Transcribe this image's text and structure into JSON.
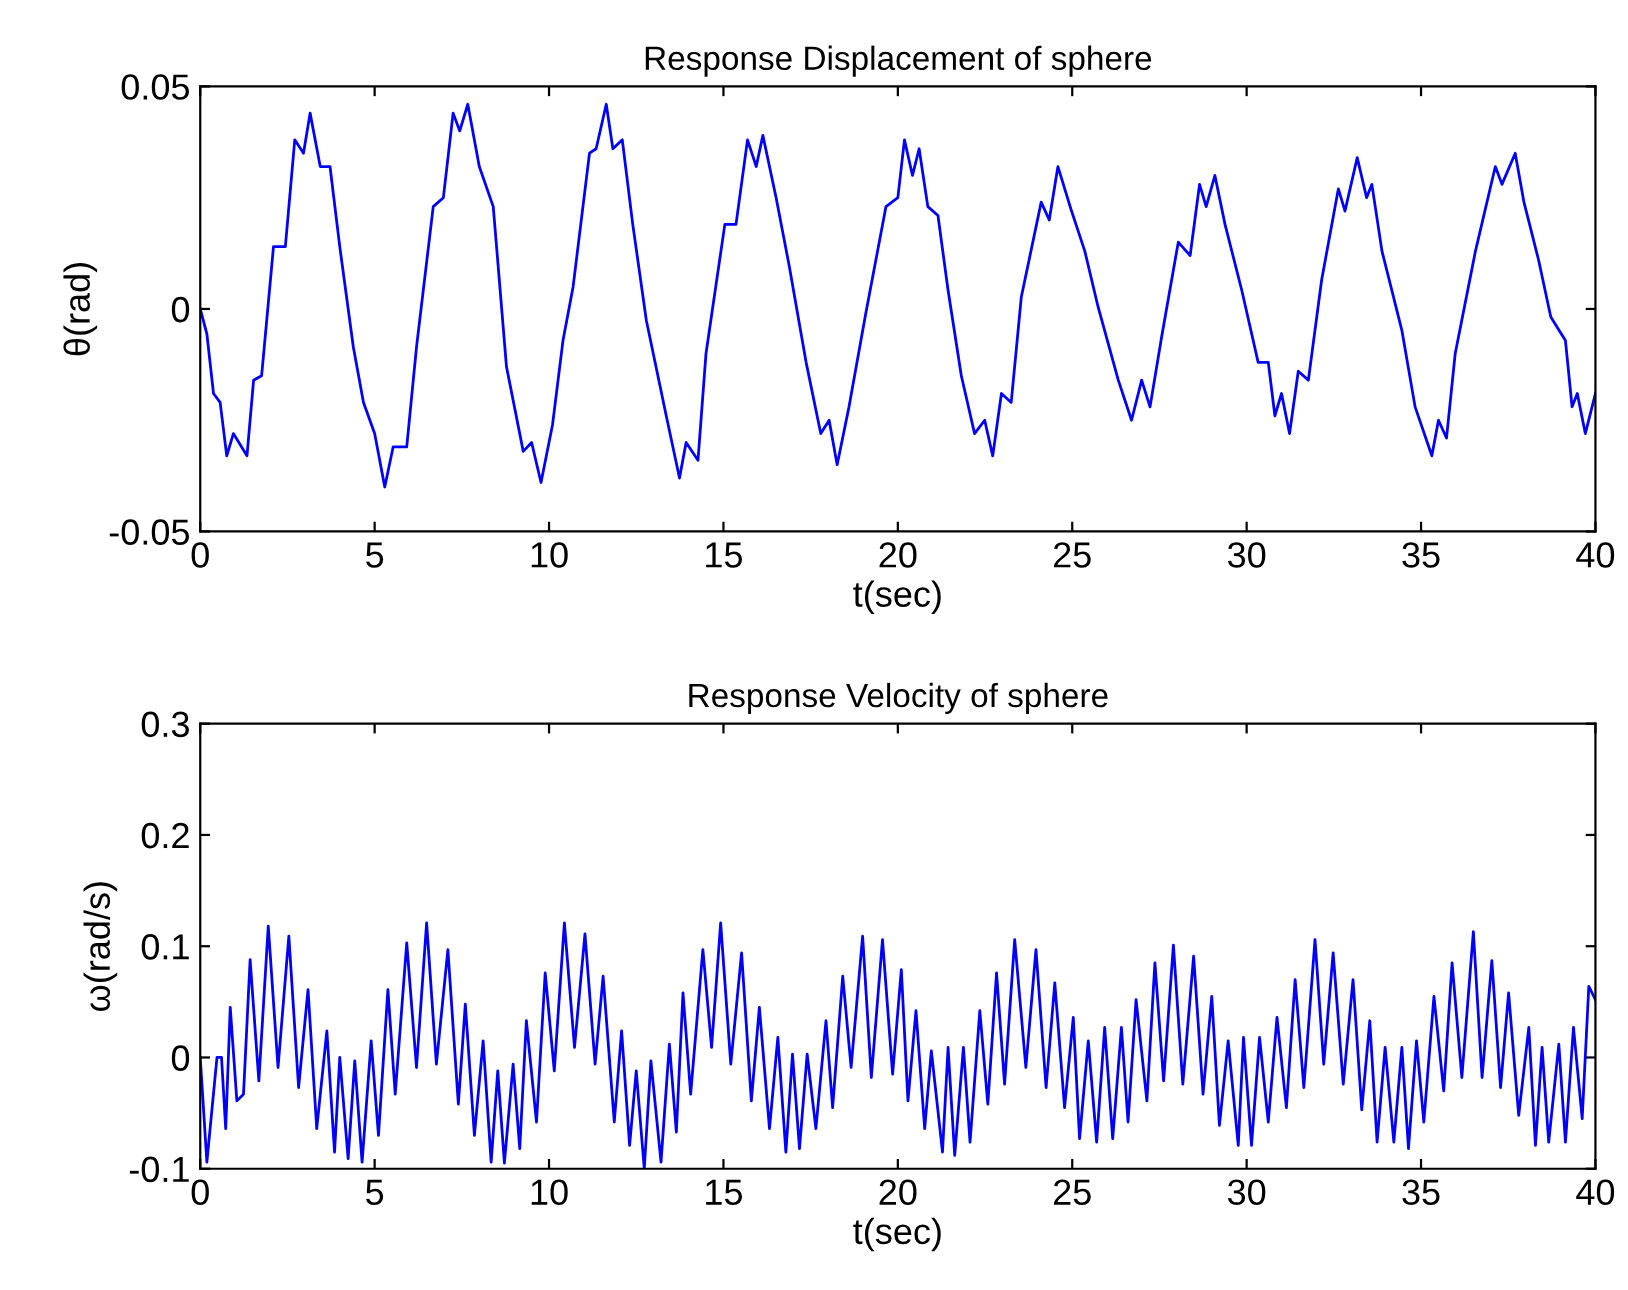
{
  "chart_data": [
    {
      "type": "line",
      "title": "Response Displacement of sphere",
      "xlabel": "t(sec)",
      "ylabel": "θ(rad)",
      "xlim": [
        0,
        40
      ],
      "xticks": [
        0,
        5,
        10,
        15,
        20,
        25,
        30,
        35,
        40
      ],
      "ylim": [
        -0.05,
        0.05
      ],
      "yticks": [
        -0.05,
        0,
        0.05
      ],
      "grid": false,
      "legend": false,
      "series": [
        {
          "color": "#0000ff",
          "x": [
            0,
            0.19,
            0.38,
            0.57,
            0.76,
            0.95,
            1.34,
            1.53,
            1.76,
            2.1,
            2.44,
            2.71,
            2.96,
            3.15,
            3.44,
            3.72,
            4.0,
            4.39,
            4.68,
            5.0,
            5.29,
            5.53,
            5.92,
            6.2,
            6.68,
            6.97,
            7.25,
            7.44,
            7.67,
            8.0,
            8.4,
            8.78,
            9.26,
            9.5,
            9.77,
            10.1,
            10.4,
            10.69,
            11.16,
            11.35,
            11.64,
            11.83,
            12.1,
            12.4,
            12.79,
            13.36,
            13.74,
            13.93,
            14.27,
            14.5,
            15.04,
            15.36,
            15.69,
            15.94,
            16.13,
            16.51,
            16.89,
            17.37,
            17.79,
            18.03,
            18.26,
            18.6,
            19.08,
            19.66,
            20.0,
            20.19,
            20.42,
            20.61,
            20.86,
            21.15,
            21.44,
            21.82,
            22.2,
            22.49,
            22.72,
            22.97,
            23.25,
            23.54,
            24.11,
            24.34,
            24.59,
            24.98,
            25.36,
            25.74,
            26.32,
            26.7,
            26.99,
            27.23,
            27.56,
            28.04,
            28.38,
            28.65,
            28.84,
            29.09,
            29.38,
            29.86,
            30.33,
            30.62,
            30.81,
            31.0,
            31.23,
            31.48,
            31.77,
            32.15,
            32.63,
            32.82,
            33.17,
            33.44,
            33.59,
            33.88,
            34.45,
            34.83,
            35.31,
            35.5,
            35.73,
            35.98,
            36.56,
            37.13,
            37.32,
            37.7,
            37.95,
            38.37,
            38.72,
            39.14,
            39.33,
            39.48,
            39.71,
            40.0
          ],
          "values": [
            0,
            -0.0056,
            -0.019,
            -0.021,
            -0.033,
            -0.028,
            -0.033,
            -0.016,
            -0.015,
            0.014,
            0.014,
            0.038,
            0.035,
            0.044,
            0.032,
            0.032,
            0.014,
            -0.0086,
            -0.021,
            -0.028,
            -0.04,
            -0.031,
            -0.031,
            -0.0086,
            0.023,
            0.025,
            0.044,
            0.04,
            0.046,
            0.032,
            0.023,
            -0.013,
            -0.032,
            -0.03,
            -0.039,
            -0.026,
            -0.0071,
            0.005,
            0.035,
            0.036,
            0.046,
            0.036,
            0.038,
            0.019,
            -0.0026,
            -0.024,
            -0.038,
            -0.03,
            -0.034,
            -0.01,
            0.019,
            0.019,
            0.038,
            0.032,
            0.039,
            0.025,
            0.0095,
            -0.012,
            -0.028,
            -0.025,
            -0.035,
            -0.022,
            -0.001,
            0.023,
            0.025,
            0.038,
            0.03,
            0.036,
            0.023,
            0.021,
            0.0042,
            -0.015,
            -0.028,
            -0.025,
            -0.033,
            -0.019,
            -0.021,
            0.0027,
            0.024,
            0.02,
            0.032,
            0.022,
            0.013,
            0.0005,
            -0.016,
            -0.025,
            -0.016,
            -0.022,
            -0.0064,
            0.015,
            0.012,
            0.028,
            0.023,
            0.03,
            0.019,
            0.0042,
            -0.012,
            -0.012,
            -0.024,
            -0.019,
            -0.028,
            -0.014,
            -0.016,
            0.0065,
            0.027,
            0.022,
            0.034,
            0.025,
            0.028,
            0.013,
            -0.0048,
            -0.022,
            -0.033,
            -0.025,
            -0.029,
            -0.01,
            0.013,
            0.032,
            0.028,
            0.035,
            0.024,
            0.011,
            -0.0018,
            -0.0071,
            -0.022,
            -0.019,
            -0.028,
            -0.019
          ]
        }
      ]
    },
    {
      "type": "line",
      "title": "Response Velocity of sphere",
      "xlabel": "t(sec)",
      "ylabel": "ω(rad/s)",
      "xlim": [
        0,
        40
      ],
      "xticks": [
        0,
        5,
        10,
        15,
        20,
        25,
        30,
        35,
        40
      ],
      "ylim": [
        -0.1,
        0.3
      ],
      "yticks": [
        -0.1,
        0,
        0.1,
        0.2,
        0.3
      ],
      "grid": false,
      "legend": false,
      "series": [
        {
          "color": "#0000ff",
          "x": [
            0,
            0.19,
            0.48,
            0.61,
            0.73,
            0.86,
            1.05,
            1.24,
            1.43,
            1.68,
            1.95,
            2.23,
            2.54,
            2.82,
            3.09,
            3.34,
            3.63,
            3.85,
            4.0,
            4.24,
            4.43,
            4.64,
            4.9,
            5.11,
            5.38,
            5.59,
            5.92,
            6.2,
            6.49,
            6.77,
            7.1,
            7.4,
            7.6,
            7.86,
            8.11,
            8.34,
            8.53,
            8.72,
            8.97,
            9.16,
            9.35,
            9.64,
            9.89,
            10.15,
            10.44,
            10.73,
            11.03,
            11.32,
            11.55,
            11.87,
            12.08,
            12.31,
            12.5,
            12.73,
            12.92,
            13.21,
            13.45,
            13.65,
            13.84,
            14.06,
            14.41,
            14.66,
            14.92,
            15.21,
            15.52,
            15.8,
            16.03,
            16.32,
            16.56,
            16.79,
            16.98,
            17.18,
            17.4,
            17.65,
            17.94,
            18.13,
            18.42,
            18.66,
            18.99,
            19.24,
            19.56,
            19.85,
            20.1,
            20.29,
            20.52,
            20.77,
            20.96,
            21.28,
            21.44,
            21.63,
            21.88,
            22.07,
            22.35,
            22.58,
            22.83,
            23.06,
            23.35,
            23.67,
            23.96,
            24.25,
            24.5,
            24.78,
            25.03,
            25.21,
            25.46,
            25.7,
            25.93,
            26.16,
            26.41,
            26.6,
            26.83,
            27.14,
            27.37,
            27.62,
            27.9,
            28.17,
            28.48,
            28.75,
            29.0,
            29.22,
            29.47,
            29.76,
            29.91,
            30.14,
            30.37,
            30.62,
            30.87,
            31.14,
            31.39,
            31.64,
            31.96,
            32.21,
            32.48,
            32.77,
            33.05,
            33.3,
            33.53,
            33.74,
            33.97,
            34.22,
            34.45,
            34.64,
            34.87,
            35.08,
            35.37,
            35.65,
            35.89,
            36.17,
            36.5,
            36.75,
            37.03,
            37.28,
            37.51,
            37.8,
            38.09,
            38.28,
            38.47,
            38.66,
            38.95,
            39.14,
            39.37,
            39.62,
            39.81,
            40.0
          ],
          "values": [
            0,
            -0.094,
            0,
            0,
            -0.064,
            0.045,
            -0.039,
            -0.033,
            0.088,
            -0.021,
            0.118,
            -0.009,
            0.109,
            -0.027,
            0.061,
            -0.064,
            0.024,
            -0.085,
            0,
            -0.091,
            -0.003,
            -0.094,
            0.015,
            -0.07,
            0.061,
            -0.033,
            0.103,
            -0.009,
            0.121,
            -0.006,
            0.097,
            -0.042,
            0.048,
            -0.07,
            0.015,
            -0.094,
            -0.012,
            -0.095,
            -0.006,
            -0.082,
            0.033,
            -0.058,
            0.076,
            -0.012,
            0.121,
            0.009,
            0.111,
            -0.006,
            0.073,
            -0.058,
            0.024,
            -0.079,
            -0.012,
            -0.1,
            -0.003,
            -0.094,
            0.012,
            -0.067,
            0.058,
            -0.033,
            0.097,
            0.009,
            0.121,
            -0.006,
            0.094,
            -0.039,
            0.045,
            -0.064,
            0.018,
            -0.085,
            0.003,
            -0.082,
            0.003,
            -0.064,
            0.033,
            -0.045,
            0.073,
            -0.009,
            0.109,
            -0.018,
            0.106,
            -0.015,
            0.079,
            -0.039,
            0.042,
            -0.064,
            0.006,
            -0.085,
            0.009,
            -0.088,
            0.009,
            -0.076,
            0.042,
            -0.042,
            0.076,
            -0.024,
            0.106,
            -0.009,
            0.097,
            -0.027,
            0.067,
            -0.045,
            0.036,
            -0.073,
            0.015,
            -0.076,
            0.027,
            -0.073,
            0.027,
            -0.058,
            0.052,
            -0.039,
            0.085,
            -0.021,
            0.101,
            -0.024,
            0.091,
            -0.033,
            0.055,
            -0.061,
            0.015,
            -0.079,
            0.018,
            -0.079,
            0.018,
            -0.058,
            0.036,
            -0.045,
            0.07,
            -0.027,
            0.106,
            -0.006,
            0.094,
            -0.024,
            0.07,
            -0.047,
            0.033,
            -0.076,
            0.009,
            -0.076,
            0.009,
            -0.082,
            0.015,
            -0.058,
            0.055,
            -0.03,
            0.085,
            -0.018,
            0.113,
            -0.018,
            0.087,
            -0.027,
            0.058,
            -0.052,
            0.027,
            -0.079,
            0.009,
            -0.076,
            0.012,
            -0.076,
            0.027,
            -0.055,
            0.064,
            0.052
          ]
        }
      ]
    }
  ]
}
